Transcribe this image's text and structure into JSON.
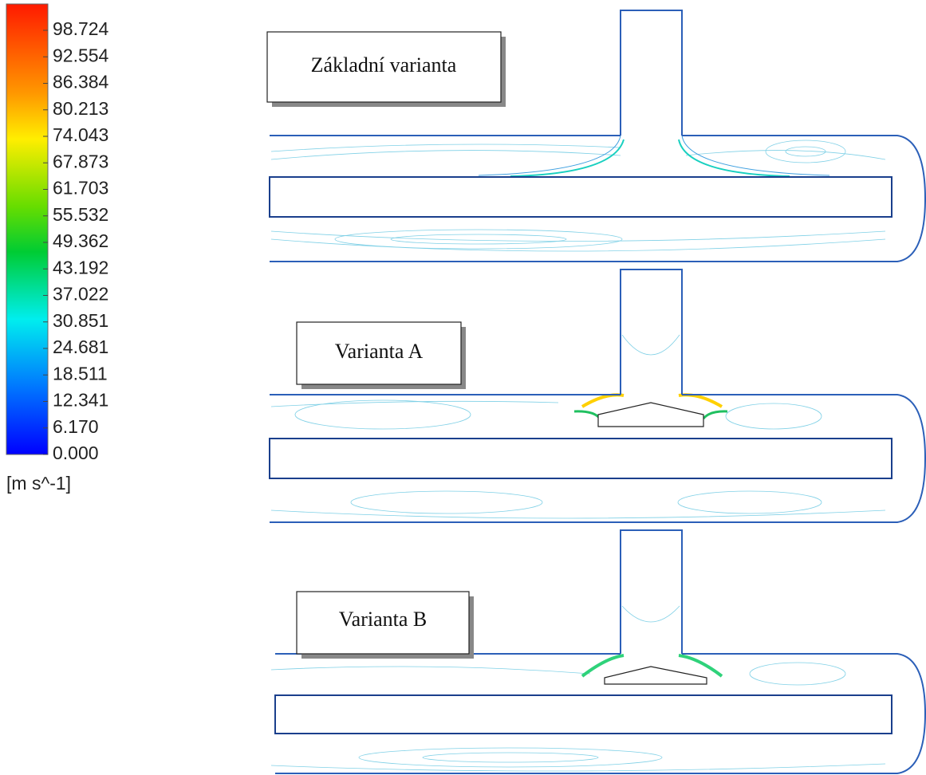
{
  "legend": {
    "labels": [
      "98.724",
      "92.554",
      "86.384",
      "80.213",
      "74.043",
      "67.873",
      "61.703",
      "55.532",
      "49.362",
      "43.192",
      "37.022",
      "30.851",
      "24.681",
      "18.511",
      "12.341",
      "6.170",
      "0.000"
    ],
    "unit": "[m s^-1]"
  },
  "panels": [
    {
      "label": "Základní varianta"
    },
    {
      "label": "Varianta A"
    },
    {
      "label": "Varianta B"
    }
  ]
}
